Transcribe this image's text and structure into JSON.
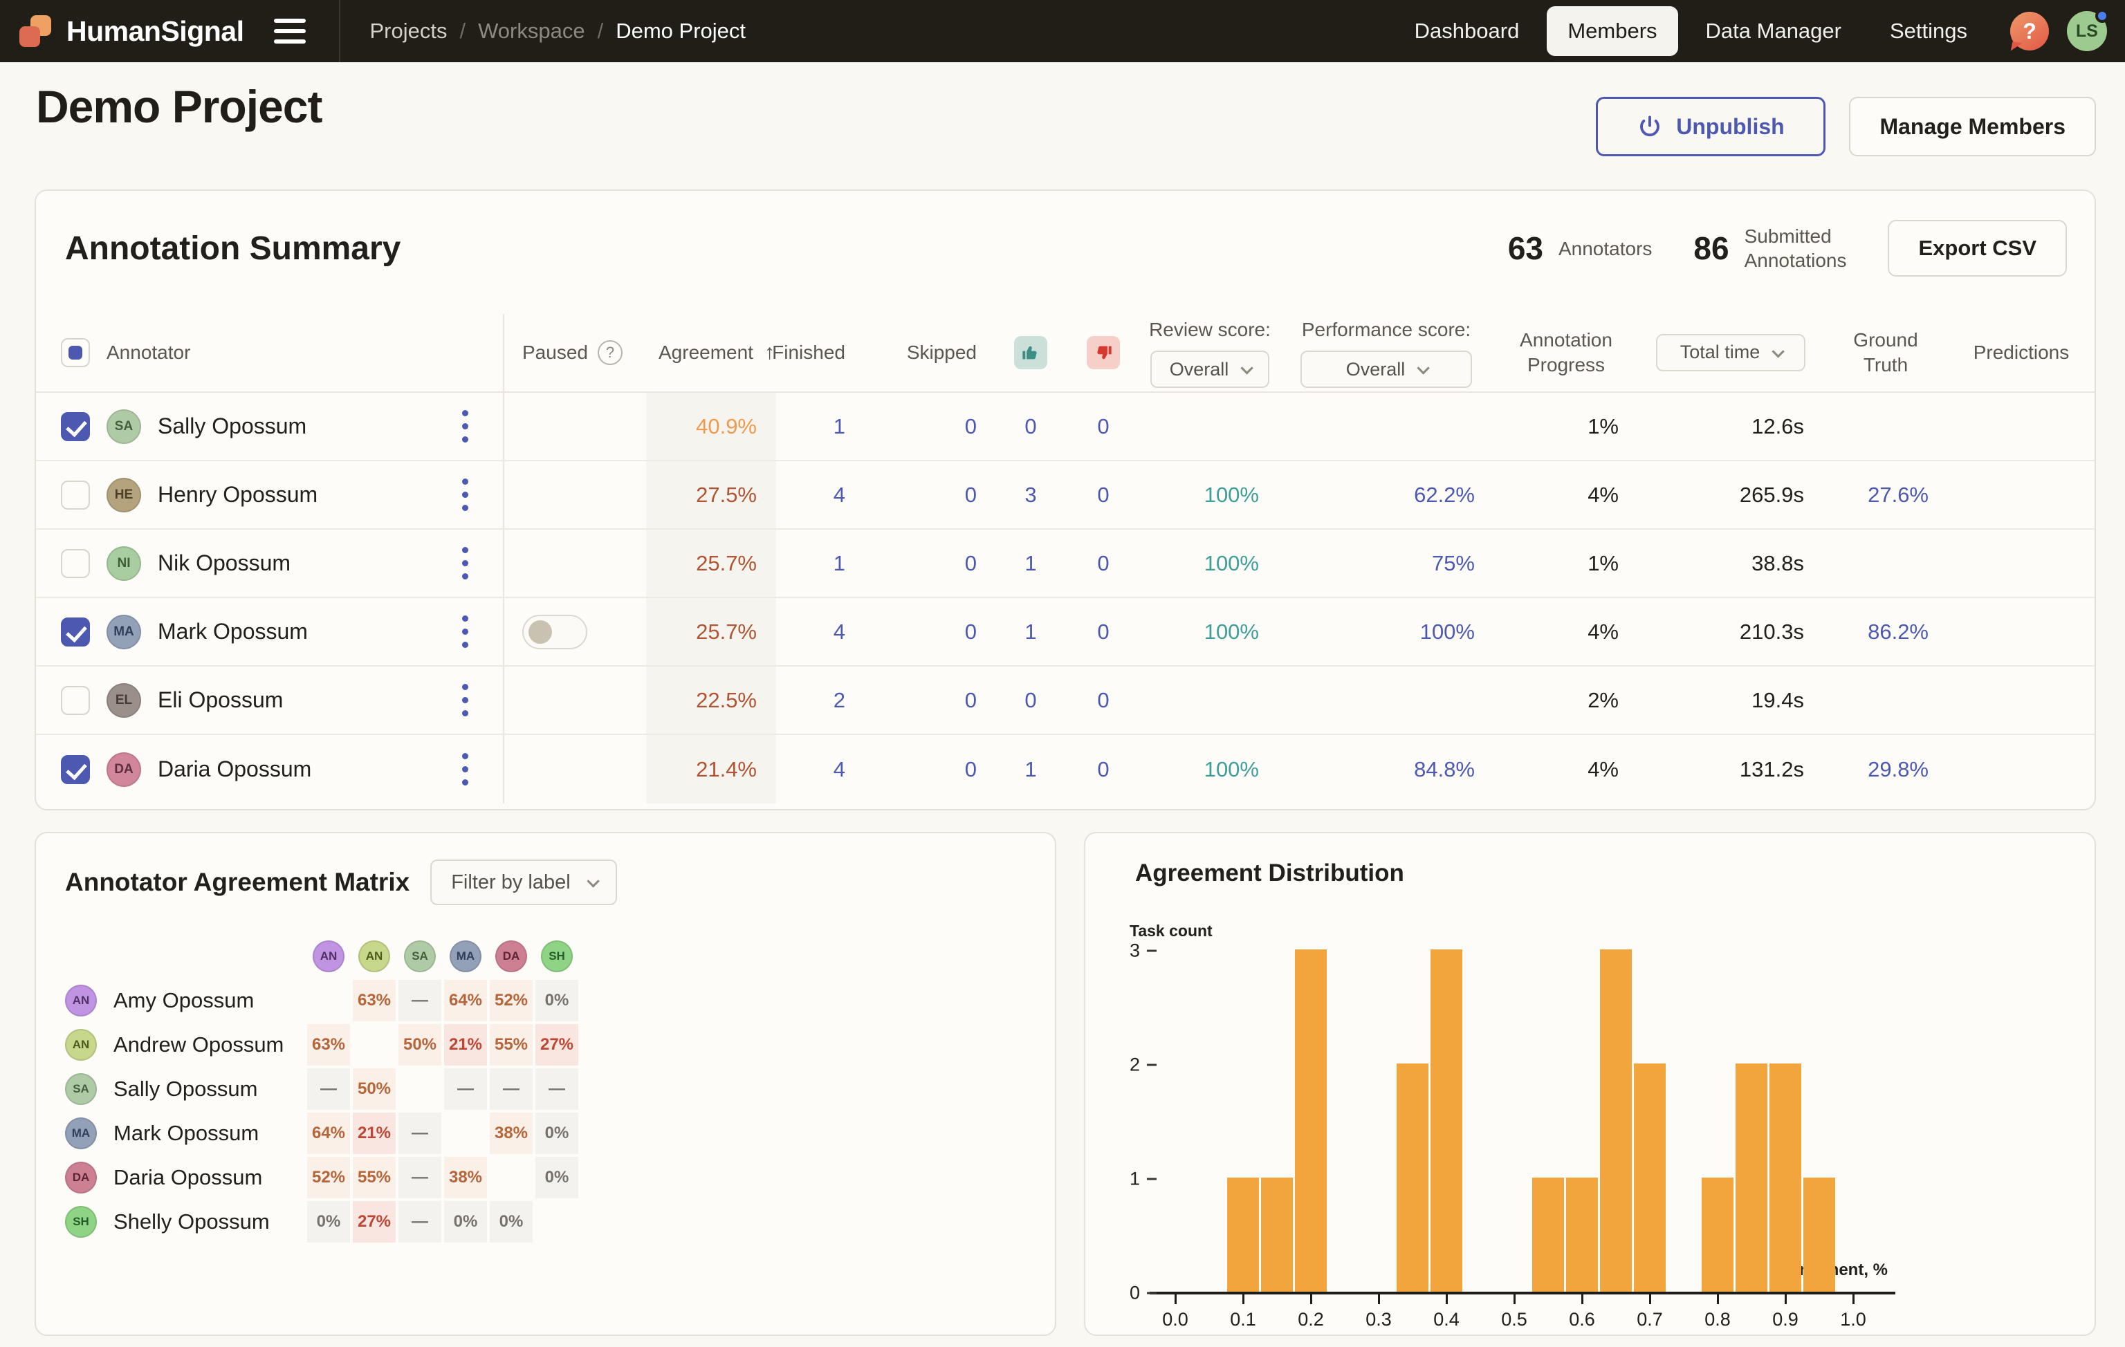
{
  "navbar": {
    "brand": "HumanSignal",
    "breadcrumb": {
      "projects": "Projects",
      "workspace": "Workspace",
      "current": "Demo Project",
      "separator": "/"
    },
    "items": [
      {
        "label": "Dashboard",
        "active": false
      },
      {
        "label": "Members",
        "active": true
      },
      {
        "label": "Data Manager",
        "active": false
      },
      {
        "label": "Settings",
        "active": false
      }
    ],
    "help_icon_glyph": "?",
    "avatar": {
      "initials": "LS",
      "bg": "#9DCB8F",
      "fg": "#2A4A26",
      "status_dot_color": "#4A7DF0"
    }
  },
  "page": {
    "title": "Demo Project",
    "unpublish_label": "Unpublish",
    "manage_members_label": "Manage Members"
  },
  "summary": {
    "heading": "Annotation Summary",
    "annotators_count": "63",
    "annotators_label": "Annotators",
    "submitted_count": "86",
    "submitted_label_line1": "Submitted",
    "submitted_label_line2": "Annotations",
    "export_label": "Export CSV",
    "columns": {
      "annotator": "Annotator",
      "paused": "Paused",
      "agreement": "Agreement",
      "sort_arrow": "↑",
      "finished": "Finished",
      "skipped": "Skipped",
      "thumb_up_icon": "thumb-up-icon",
      "thumb_down_icon": "thumb-down-icon",
      "review_score": "Review score:",
      "performance_score": "Performance score:",
      "annotation_progress": "Annotation Progress",
      "ground_truth": "Ground Truth",
      "predictions": "Predictions"
    },
    "review_score_value": "Overall",
    "performance_score_value": "Overall",
    "total_time_value": "Total time",
    "rows": [
      {
        "selected": true,
        "initials": "SA",
        "avatar_bg": "#AFCBA6",
        "avatar_fg": "#415E3E",
        "name": "Sally Opossum",
        "paused_toggle": false,
        "agreement": "40.9%",
        "agreement_tone": "ag-orange",
        "finished": "1",
        "skipped": "0",
        "thumbs_up": "0",
        "thumbs_down": "0",
        "review_score": "",
        "performance_score": "",
        "progress": "1%",
        "total_time": "12.6s",
        "ground_truth": "",
        "predictions": ""
      },
      {
        "selected": false,
        "initials": "HE",
        "avatar_bg": "#B4A37C",
        "avatar_fg": "#4C4128",
        "name": "Henry Opossum",
        "paused_toggle": false,
        "agreement": "27.5%",
        "agreement_tone": "ag-red",
        "finished": "4",
        "skipped": "0",
        "thumbs_up": "3",
        "thumbs_down": "0",
        "review_score": "100%",
        "performance_score": "62.2%",
        "progress": "4%",
        "total_time": "265.9s",
        "ground_truth": "27.6%",
        "predictions": ""
      },
      {
        "selected": false,
        "initials": "NI",
        "avatar_bg": "#A8CDA0",
        "avatar_fg": "#3E5C3A",
        "name": "Nik Opossum",
        "paused_toggle": false,
        "agreement": "25.7%",
        "agreement_tone": "ag-red",
        "finished": "1",
        "skipped": "0",
        "thumbs_up": "1",
        "thumbs_down": "0",
        "review_score": "100%",
        "performance_score": "75%",
        "progress": "1%",
        "total_time": "38.8s",
        "ground_truth": "",
        "predictions": ""
      },
      {
        "selected": true,
        "initials": "MA",
        "avatar_bg": "#92A0B8",
        "avatar_fg": "#333F58",
        "name": "Mark Opossum",
        "paused_toggle": true,
        "agreement": "25.7%",
        "agreement_tone": "ag-red",
        "finished": "4",
        "skipped": "0",
        "thumbs_up": "1",
        "thumbs_down": "0",
        "review_score": "100%",
        "performance_score": "100%",
        "progress": "4%",
        "total_time": "210.3s",
        "ground_truth": "86.2%",
        "predictions": ""
      },
      {
        "selected": false,
        "initials": "EL",
        "avatar_bg": "#9B9089",
        "avatar_fg": "#423A34",
        "name": "Eli Opossum",
        "paused_toggle": false,
        "agreement": "22.5%",
        "agreement_tone": "ag-red",
        "finished": "2",
        "skipped": "0",
        "thumbs_up": "0",
        "thumbs_down": "0",
        "review_score": "",
        "performance_score": "",
        "progress": "2%",
        "total_time": "19.4s",
        "ground_truth": "",
        "predictions": ""
      },
      {
        "selected": true,
        "initials": "DA",
        "avatar_bg": "#D1869C",
        "avatar_fg": "#5C2E3E",
        "name": "Daria Opossum",
        "paused_toggle": false,
        "agreement": "21.4%",
        "agreement_tone": "ag-red",
        "finished": "4",
        "skipped": "0",
        "thumbs_up": "1",
        "thumbs_down": "0",
        "review_score": "100%",
        "performance_score": "84.8%",
        "progress": "4%",
        "total_time": "131.2s",
        "ground_truth": "29.8%",
        "predictions": ""
      }
    ]
  },
  "matrix": {
    "title": "Annotator Agreement Matrix",
    "filter_label": "Filter by label",
    "cols": [
      {
        "initials": "AN",
        "bg": "#C094E2",
        "fg": "#4F3167"
      },
      {
        "initials": "AN",
        "bg": "#C7D78B",
        "fg": "#4C5A1E"
      },
      {
        "initials": "SA",
        "bg": "#AFCBA6",
        "fg": "#415E3E"
      },
      {
        "initials": "MA",
        "bg": "#92A0B8",
        "fg": "#333F58"
      },
      {
        "initials": "DA",
        "bg": "#CE8093",
        "fg": "#5C2433"
      },
      {
        "initials": "SH",
        "bg": "#8FD385",
        "fg": "#265C2B"
      }
    ],
    "rows": [
      {
        "initials": "AN",
        "bg": "#C094E2",
        "fg": "#4F3167",
        "name": "Amy Opossum",
        "cells": [
          {
            "v": "",
            "t": "empty"
          },
          {
            "v": "63%",
            "t": "orange"
          },
          {
            "v": "—",
            "t": "dash"
          },
          {
            "v": "64%",
            "t": "orange"
          },
          {
            "v": "52%",
            "t": "orange"
          },
          {
            "v": "0%",
            "t": "gray"
          }
        ]
      },
      {
        "initials": "AN",
        "bg": "#C7D78B",
        "fg": "#4C5A1E",
        "name": "Andrew Opossum",
        "cells": [
          {
            "v": "63%",
            "t": "orange"
          },
          {
            "v": "",
            "t": "empty"
          },
          {
            "v": "50%",
            "t": "orange"
          },
          {
            "v": "21%",
            "t": "red"
          },
          {
            "v": "55%",
            "t": "orange"
          },
          {
            "v": "27%",
            "t": "red"
          }
        ]
      },
      {
        "initials": "SA",
        "bg": "#AFCBA6",
        "fg": "#415E3E",
        "name": "Sally Opossum",
        "cells": [
          {
            "v": "—",
            "t": "dash"
          },
          {
            "v": "50%",
            "t": "orange"
          },
          {
            "v": "",
            "t": "empty"
          },
          {
            "v": "—",
            "t": "dash"
          },
          {
            "v": "—",
            "t": "dash"
          },
          {
            "v": "—",
            "t": "dash"
          }
        ]
      },
      {
        "initials": "MA",
        "bg": "#92A0B8",
        "fg": "#333F58",
        "name": "Mark Opossum",
        "cells": [
          {
            "v": "64%",
            "t": "orange"
          },
          {
            "v": "21%",
            "t": "red"
          },
          {
            "v": "—",
            "t": "dash"
          },
          {
            "v": "",
            "t": "empty"
          },
          {
            "v": "38%",
            "t": "orange"
          },
          {
            "v": "0%",
            "t": "gray"
          }
        ]
      },
      {
        "initials": "DA",
        "bg": "#CE8093",
        "fg": "#5C2433",
        "name": "Daria Opossum",
        "cells": [
          {
            "v": "52%",
            "t": "orange"
          },
          {
            "v": "55%",
            "t": "orange"
          },
          {
            "v": "—",
            "t": "dash"
          },
          {
            "v": "38%",
            "t": "orange"
          },
          {
            "v": "",
            "t": "empty"
          },
          {
            "v": "0%",
            "t": "gray"
          }
        ]
      },
      {
        "initials": "SH",
        "bg": "#8FD385",
        "fg": "#265C2B",
        "name": "Shelly Opossum",
        "cells": [
          {
            "v": "0%",
            "t": "gray"
          },
          {
            "v": "27%",
            "t": "red"
          },
          {
            "v": "—",
            "t": "dash"
          },
          {
            "v": "0%",
            "t": "gray"
          },
          {
            "v": "0%",
            "t": "gray"
          },
          {
            "v": "",
            "t": "empty"
          }
        ]
      }
    ]
  },
  "chart_data": {
    "type": "bar",
    "title": "Agreement Distribution",
    "ylabel": "Task count",
    "xlabel": "Agreement, %",
    "x_ticks": [
      0.0,
      0.1,
      0.2,
      0.3,
      0.4,
      0.5,
      0.6,
      0.7,
      0.8,
      0.9,
      1.0
    ],
    "y_ticks": [
      0,
      1,
      2,
      3
    ],
    "ylim": [
      0,
      3
    ],
    "xlim": [
      -0.05,
      1.05
    ],
    "bin_width": 0.05,
    "bar_color": "#F2A53C",
    "grid": false,
    "legend": false,
    "bars": [
      {
        "x": 0.1,
        "count": 1
      },
      {
        "x": 0.15,
        "count": 1
      },
      {
        "x": 0.2,
        "count": 3
      },
      {
        "x": 0.35,
        "count": 2
      },
      {
        "x": 0.4,
        "count": 3
      },
      {
        "x": 0.55,
        "count": 1
      },
      {
        "x": 0.6,
        "count": 1
      },
      {
        "x": 0.65,
        "count": 3
      },
      {
        "x": 0.7,
        "count": 2
      },
      {
        "x": 0.8,
        "count": 1
      },
      {
        "x": 0.85,
        "count": 2
      },
      {
        "x": 0.9,
        "count": 2
      },
      {
        "x": 0.95,
        "count": 1
      }
    ]
  },
  "colors": {
    "navbar_bg": "#211D17",
    "page_bg": "#FAF8F3",
    "card_bg": "#FDFCF9",
    "card_border": "#E5E1D7",
    "accent_indigo": "#4D58B0",
    "teal": "#3E9E98",
    "agreement_orange": "#EF9A4E",
    "agreement_red": "#B05433",
    "bar_orange": "#F2A53C",
    "logo_orange": "#EFA163",
    "logo_coral": "#DD6B52"
  }
}
